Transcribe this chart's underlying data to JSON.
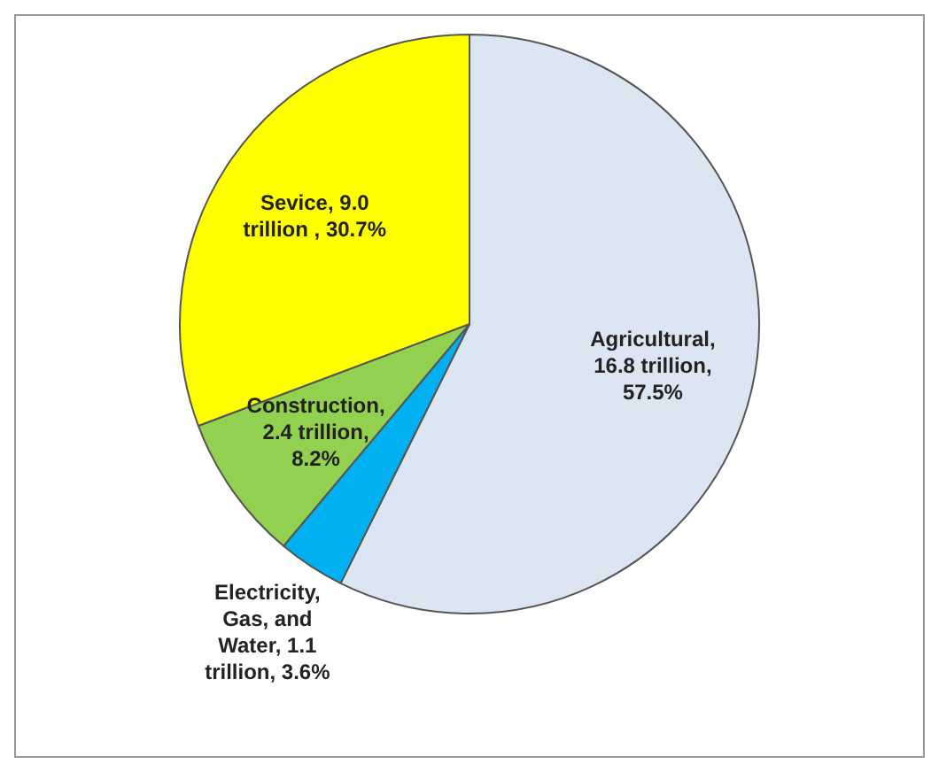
{
  "chart_data": {
    "type": "pie",
    "categories": [
      "Agricultural",
      "Electricity, Gas, and Water",
      "Construction",
      "Sevice"
    ],
    "values": [
      16.8,
      1.1,
      2.4,
      9.0
    ],
    "value_labels": [
      ", 16.8 trillion, 57.5%",
      ", 1.1 trillion, 3.6%",
      ", 2.4 trillion, 8.2%",
      ", 9.0 trillion , 30.7%"
    ],
    "colors": [
      "#dce6f2",
      "#00b0f0",
      "#92d050",
      "#ffff00"
    ],
    "legend": false
  }
}
